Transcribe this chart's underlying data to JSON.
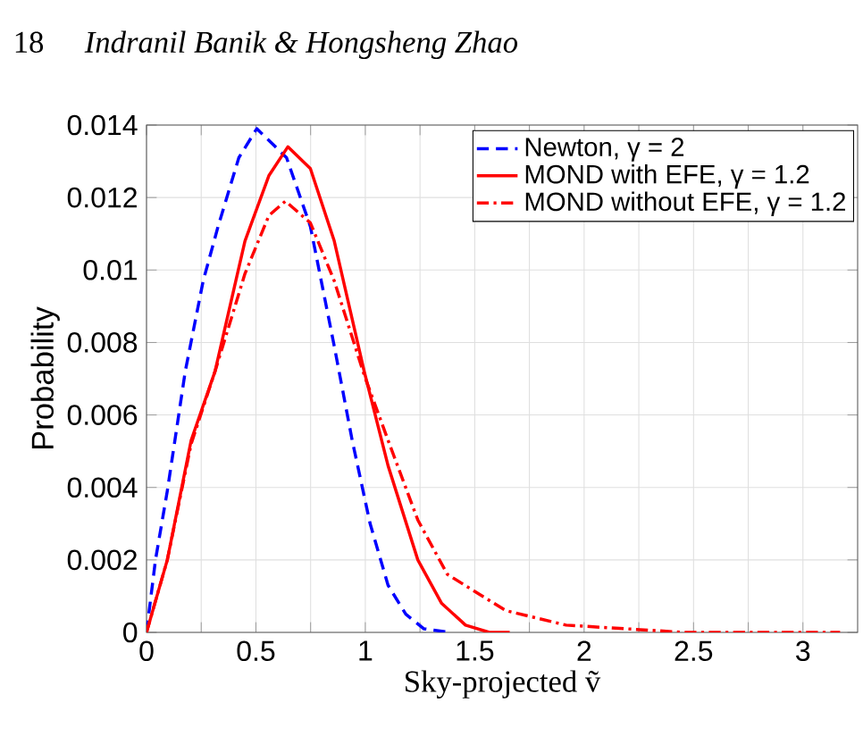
{
  "chart_data": {
    "type": "line",
    "xlabel": "Sky-projected ṽ",
    "ylabel": "Probability",
    "annotations": [
      "18",
      "*Indranil Banik & Hongsheng Zhao*"
    ],
    "xlim": [
      0,
      3.25
    ],
    "ylim": [
      0,
      0.014
    ],
    "xticks": [
      0,
      {
        "value": 0.25,
        "label": null
      },
      0.5,
      {
        "value": 0.75,
        "label": null
      },
      1,
      {
        "value": 1.25,
        "label": null
      },
      1.5,
      {
        "value": 1.75,
        "label": null
      },
      2,
      {
        "value": 2.25,
        "label": null
      },
      2.5,
      {
        "value": 2.75,
        "label": null
      },
      3
    ],
    "yticks": [
      0,
      0.002,
      0.004,
      0.006,
      0.008,
      0.01,
      0.012,
      0.014
    ],
    "grid": true,
    "legend": "top right",
    "series": [
      {
        "name": "Newton, γ = 2",
        "color": "#0000ff",
        "line_style": "dashed",
        "x": [
          0,
          0.041,
          0.095,
          0.177,
          0.259,
          0.327,
          0.422,
          0.504,
          0.64,
          0.749,
          0.858,
          0.94,
          1.022,
          1.104,
          1.185,
          1.267,
          1.39
        ],
        "values": [
          0,
          0.002,
          0.0039,
          0.0072,
          0.0097,
          0.0112,
          0.0131,
          0.0139,
          0.0131,
          0.0112,
          0.0079,
          0.0053,
          0.003,
          0.0013,
          0.0005,
          0.0001,
          0
        ]
      },
      {
        "name": "MOND with EFE, γ = 1.2",
        "color": "#ff0000",
        "line_style": "solid",
        "x": [
          0,
          0.095,
          0.204,
          0.313,
          0.45,
          0.559,
          0.646,
          0.749,
          0.858,
          0.995,
          1.104,
          1.24,
          1.349,
          1.458,
          1.567,
          1.66
        ],
        "values": [
          0,
          0.002,
          0.0053,
          0.0072,
          0.0108,
          0.0126,
          0.0134,
          0.0128,
          0.0108,
          0.0072,
          0.0046,
          0.002,
          0.0008,
          0.0002,
          0,
          0
        ]
      },
      {
        "name": "MOND without EFE, γ = 1.2",
        "color": "#ff0000",
        "line_style": "dashdot",
        "x": [
          0,
          0.095,
          0.204,
          0.313,
          0.45,
          0.559,
          0.635,
          0.749,
          0.858,
          0.995,
          1.104,
          1.24,
          1.375,
          1.643,
          1.918,
          2.19,
          2.46,
          3.17
        ],
        "values": [
          0,
          0.002,
          0.0052,
          0.0072,
          0.0099,
          0.0115,
          0.0119,
          0.0113,
          0.0097,
          0.0071,
          0.0053,
          0.0031,
          0.0016,
          0.0006,
          0.0002,
          0.0001,
          0,
          0
        ]
      }
    ]
  }
}
